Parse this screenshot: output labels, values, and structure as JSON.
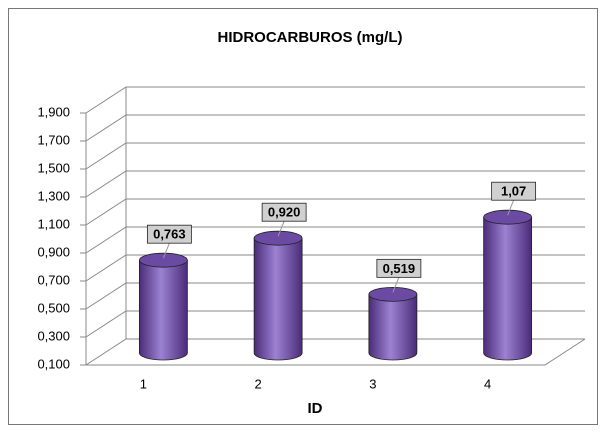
{
  "chart_data": {
    "type": "bar3d",
    "title": "HIDROCARBUROS (mg/L)",
    "x_label": "ID",
    "categories": [
      "1",
      "2",
      "3",
      "4"
    ],
    "values": [
      0.763,
      0.92,
      0.519,
      1.07
    ],
    "value_labels": [
      "0,763",
      "0,920",
      "0,519",
      "1,07"
    ],
    "color": "#7a5cb5",
    "ylim": [
      0.1,
      1.9
    ],
    "yticks": [
      {
        "value": 0.1,
        "label": "0,100"
      },
      {
        "value": 0.3,
        "label": "0,300"
      },
      {
        "value": 0.5,
        "label": "0,500"
      },
      {
        "value": 0.7,
        "label": "0,700"
      },
      {
        "value": 0.9,
        "label": "0,900"
      },
      {
        "value": 1.1,
        "label": "1,100"
      },
      {
        "value": 1.3,
        "label": "1,300"
      },
      {
        "value": 1.5,
        "label": "1,500"
      },
      {
        "value": 1.7,
        "label": "1,700"
      },
      {
        "value": 1.9,
        "label": "1,900"
      }
    ],
    "grid": true
  }
}
